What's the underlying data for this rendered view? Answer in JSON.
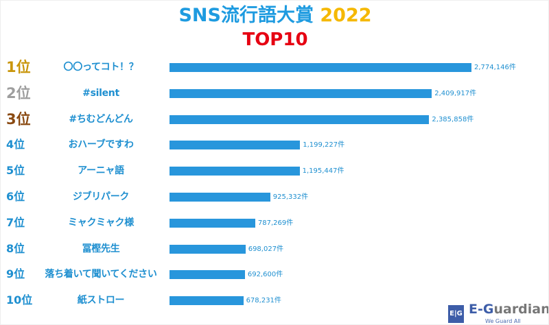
{
  "chart_data": {
    "type": "bar",
    "orientation": "horizontal",
    "title": "SNS流行語大賞",
    "title_year": "2022",
    "subtitle": "TOP10",
    "unit": "件",
    "ranks": [
      "1位",
      "2位",
      "3位",
      "4位",
      "5位",
      "6位",
      "7位",
      "8位",
      "9位",
      "10位"
    ],
    "categories": [
      "〇〇ってコト！？",
      "#silent",
      "#ちむどんどん",
      "おハーブですわ",
      "アーニャ語",
      "ジブリパーク",
      "ミャクミャク様",
      "冨樫先生",
      "落ち着いて聞いてください",
      "紙ストロー"
    ],
    "values": [
      2774146,
      2409917,
      2385858,
      1199227,
      1195447,
      925332,
      787269,
      698027,
      692600,
      678231
    ],
    "value_labels": [
      "2,774,146件",
      "2,409,917件",
      "2,385,858件",
      "1,199,227件",
      "1,195,447件",
      "925,332件",
      "787,269件",
      "698,027件",
      "692,600件",
      "678,231件"
    ],
    "colors": {
      "bar": "#2896dc",
      "rank1": "#c9960c",
      "rank2": "#9e9e9e",
      "rank3": "#8a4a12",
      "rank_other": "#1e8fd0"
    },
    "grid": false
  },
  "footer": {
    "brand_logo": "E|G",
    "brand": "E-Guardian",
    "tagline": "We Guard All"
  }
}
